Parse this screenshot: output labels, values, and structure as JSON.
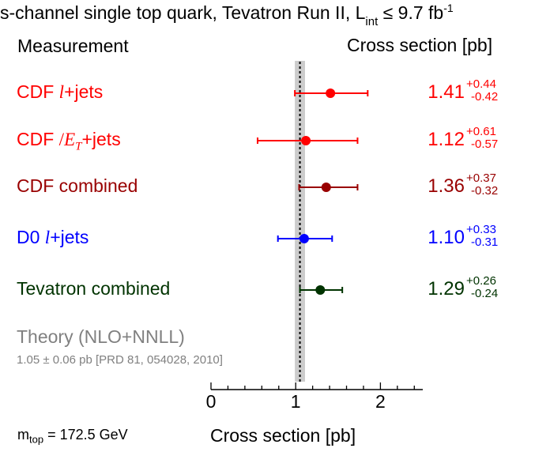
{
  "chart_data": {
    "type": "forest",
    "title": "s-channel single top quark, Tevatron Run II, L",
    "title_sub": "int",
    "title_suffix": " ≤ 9.7 fb",
    "title_sup": "-1",
    "header_left": "Measurement",
    "header_right": "Cross section [pb]",
    "xlabel": "Cross section [pb]",
    "xlim": [
      0,
      2.5
    ],
    "xticks": [
      0,
      1,
      2
    ],
    "xtick_labels": [
      "0",
      "1",
      "2"
    ],
    "minor_tick_step": 0.2,
    "theory": {
      "label": "Theory (NLO+NNLL)",
      "ref": "1.05 ± 0.06 pb [PRD 81, 054028, 2010]",
      "value": 1.05,
      "unc": 0.06,
      "band_color": "#cccccc"
    },
    "note_main": "m",
    "note_sub": "top",
    "note_suffix": " = 172.5 GeV",
    "series": [
      {
        "name": "CDF l+jets",
        "pre": "CDF ",
        "ital": "l",
        "post": "+jets",
        "value": 1.41,
        "value_label": "1.41",
        "plus": 0.44,
        "minus": 0.42,
        "plus_label": "+0.44",
        "minus_label": "-0.42",
        "color": "#ff0000"
      },
      {
        "name": "CDF MET+jets",
        "pre": "CDF ",
        "met": "E",
        "met_slash": "/",
        "met_sub": "T",
        "post": "+jets",
        "value": 1.12,
        "value_label": "1.12",
        "plus": 0.61,
        "minus": 0.57,
        "plus_label": "+0.61",
        "minus_label": "-0.57",
        "color": "#ff0000"
      },
      {
        "name": "CDF combined",
        "pre": "CDF combined",
        "value": 1.36,
        "value_label": "1.36",
        "plus": 0.37,
        "minus": 0.32,
        "plus_label": "+0.37",
        "minus_label": "-0.32",
        "color": "#990000"
      },
      {
        "name": "D0 l+jets",
        "pre": "D0 ",
        "ital": "l",
        "post": "+jets",
        "value": 1.1,
        "value_label": "1.10",
        "plus": 0.33,
        "minus": 0.31,
        "plus_label": "+0.33",
        "minus_label": "-0.31",
        "color": "#0000ff"
      },
      {
        "name": "Tevatron combined",
        "pre": "Tevatron combined",
        "value": 1.29,
        "value_label": "1.29",
        "plus": 0.26,
        "minus": 0.24,
        "plus_label": "+0.26",
        "minus_label": "-0.24",
        "color": "#003300"
      }
    ]
  }
}
